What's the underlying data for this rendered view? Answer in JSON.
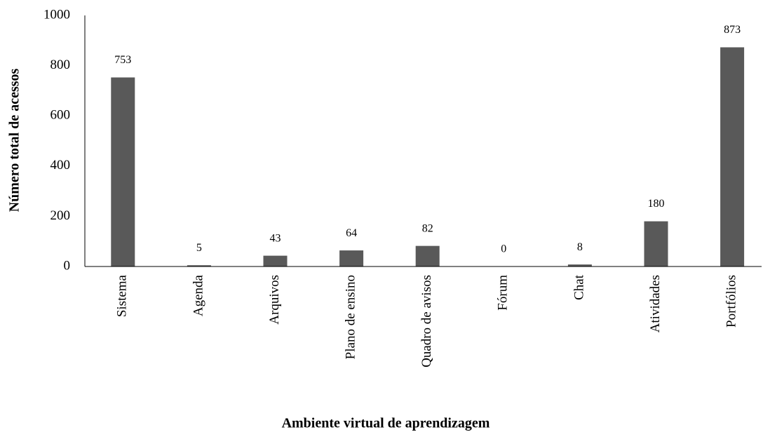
{
  "chart_data": {
    "type": "bar",
    "xlabel": "Ambiente virtual de aprendizagem",
    "ylabel": "Número total de acessos",
    "categories": [
      "Sistema",
      "Agenda",
      "Arquivos",
      "Plano de ensino",
      "Quadro de avisos",
      "Fórum",
      "Chat",
      "Atividades",
      "Portfólios"
    ],
    "values": [
      753,
      5,
      43,
      64,
      82,
      0,
      8,
      180,
      873
    ],
    "color": "#595959",
    "ylim": [
      0,
      1000
    ],
    "yticks": [
      0,
      200,
      400,
      600,
      800,
      1000
    ],
    "grid": false
  }
}
